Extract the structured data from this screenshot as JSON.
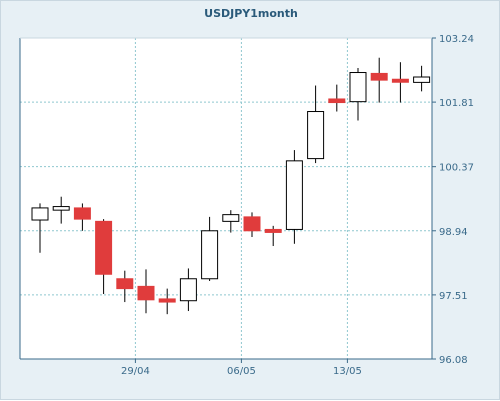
{
  "chart_data": {
    "type": "candlestick",
    "title": "USDJPY1month",
    "xlabel": "",
    "ylabel": "",
    "ylim": [
      96.08,
      103.24
    ],
    "y_ticks": [
      "103.24",
      "101.81",
      "100.37",
      "98.94",
      "97.51",
      "96.08"
    ],
    "y_tick_values": [
      103.24,
      101.81,
      100.37,
      98.94,
      97.51,
      96.08
    ],
    "x_ticks": [
      {
        "label": "29/04",
        "index": 4
      },
      {
        "label": "06/05",
        "index": 9
      },
      {
        "label": "13/05",
        "index": 14
      }
    ],
    "grid": true,
    "up_color": "#ffffff",
    "down_color": "#e03c3c",
    "candles": [
      {
        "open": 99.18,
        "high": 99.55,
        "low": 98.45,
        "close": 99.45
      },
      {
        "open": 99.4,
        "high": 99.7,
        "low": 99.1,
        "close": 99.48
      },
      {
        "open": 99.45,
        "high": 99.55,
        "low": 98.94,
        "close": 99.2
      },
      {
        "open": 99.15,
        "high": 99.2,
        "low": 97.53,
        "close": 97.97
      },
      {
        "open": 97.87,
        "high": 98.05,
        "low": 97.35,
        "close": 97.65
      },
      {
        "open": 97.7,
        "high": 98.08,
        "low": 97.1,
        "close": 97.4
      },
      {
        "open": 97.42,
        "high": 97.65,
        "low": 97.08,
        "close": 97.35
      },
      {
        "open": 97.38,
        "high": 98.1,
        "low": 97.15,
        "close": 97.87
      },
      {
        "open": 97.87,
        "high": 99.25,
        "low": 97.82,
        "close": 98.94
      },
      {
        "open": 99.15,
        "high": 99.4,
        "low": 98.9,
        "close": 99.3
      },
      {
        "open": 99.25,
        "high": 99.35,
        "low": 98.8,
        "close": 98.94
      },
      {
        "open": 98.97,
        "high": 99.05,
        "low": 98.6,
        "close": 98.94
      },
      {
        "open": 98.97,
        "high": 100.74,
        "low": 98.65,
        "close": 100.5
      },
      {
        "open": 100.55,
        "high": 102.18,
        "low": 100.45,
        "close": 101.6
      },
      {
        "open": 101.88,
        "high": 102.2,
        "low": 101.6,
        "close": 101.8
      },
      {
        "open": 101.82,
        "high": 102.57,
        "low": 101.4,
        "close": 102.47
      },
      {
        "open": 102.45,
        "high": 102.8,
        "low": 101.8,
        "close": 102.3
      },
      {
        "open": 102.32,
        "high": 102.7,
        "low": 101.8,
        "close": 102.3
      },
      {
        "open": 102.25,
        "high": 102.62,
        "low": 102.05,
        "close": 102.37
      }
    ]
  }
}
